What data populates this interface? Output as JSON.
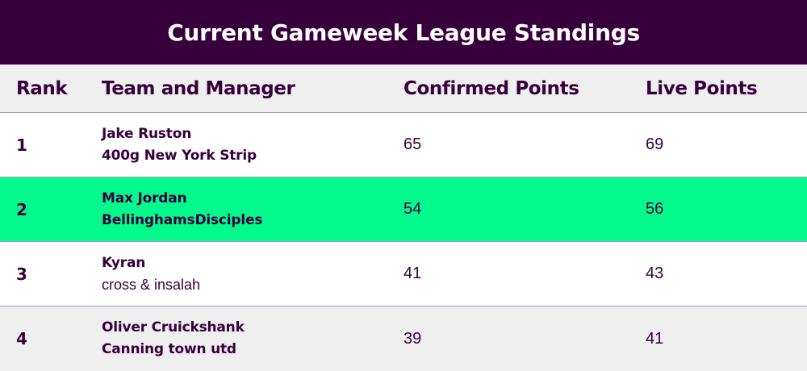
{
  "title": "Current Gameweek League Standings",
  "colors": {
    "header_bg": "#37003c",
    "text": "#37003c",
    "highlight_row": "#02f98c",
    "stripe_row": "#efefef",
    "divider": "#a99bbd"
  },
  "columns": {
    "rank": "Rank",
    "team": "Team and Manager",
    "confirmed": "Confirmed Points",
    "live": "Live Points"
  },
  "rows": [
    {
      "rank": "1",
      "manager": "Jake Ruston",
      "team": "400g New York Strip",
      "confirmed": "65",
      "live": "69"
    },
    {
      "rank": "2",
      "manager": "Max Jordan",
      "team": "BellinghamsDisciples",
      "confirmed": "54",
      "live": "56"
    },
    {
      "rank": "3",
      "manager": "Kyran",
      "team": "cross & insalah",
      "confirmed": "41",
      "live": "43"
    },
    {
      "rank": "4",
      "manager": "Oliver Cruickshank",
      "team": "Canning town utd",
      "confirmed": "39",
      "live": "41"
    }
  ]
}
